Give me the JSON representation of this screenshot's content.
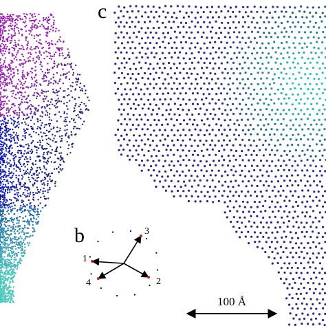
{
  "panels": {
    "c": {
      "label": "c"
    },
    "b": {
      "label": "b",
      "vector_labels": [
        "1",
        "2",
        "3",
        "4"
      ]
    }
  },
  "scale_bar": {
    "label": "100 Å"
  }
}
